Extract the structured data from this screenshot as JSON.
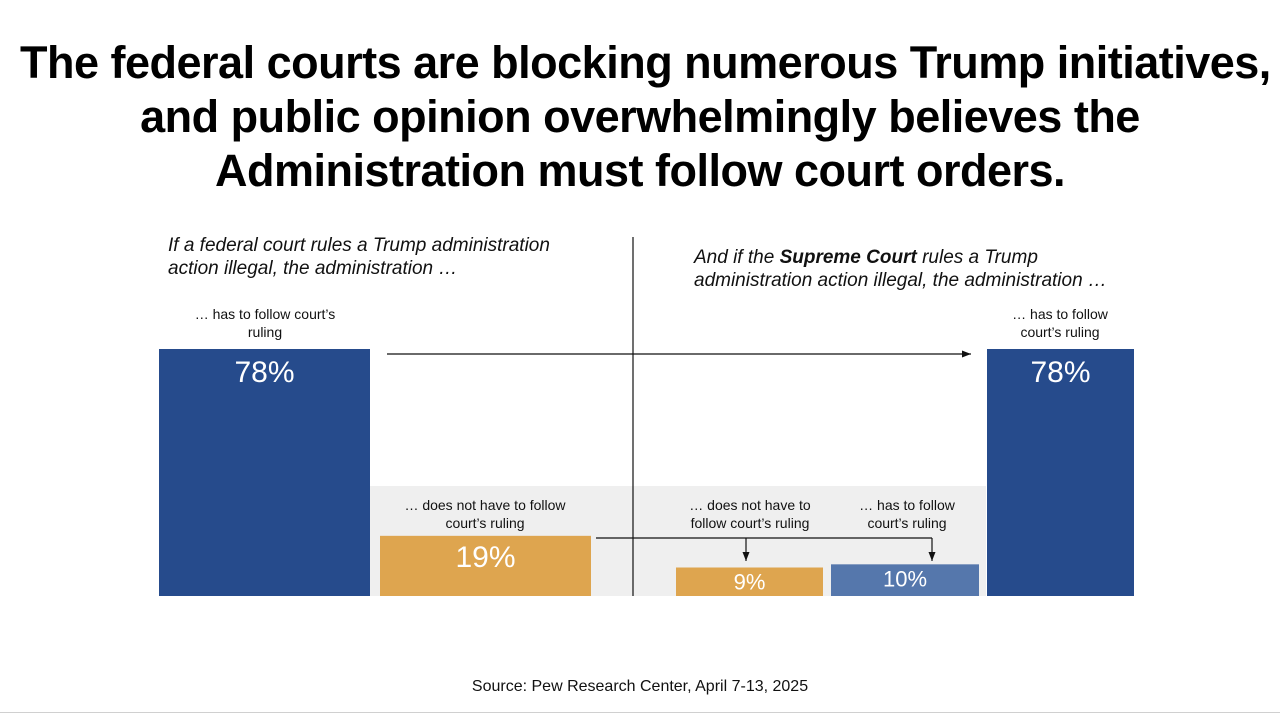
{
  "title_lines": [
    "The federal courts are blocking numerous Trump initiatives,",
    "and public opinion overwhelmingly believes the",
    "Administration must follow court orders."
  ],
  "left_subtitle_lines": [
    "If a federal court rules a Trump administration",
    "action illegal, the administration …"
  ],
  "right_subtitle": {
    "prefix": "And if the ",
    "bold": "Supreme Court",
    "suffix": " rules a Trump",
    "line2": "administration action illegal, the administration …"
  },
  "labels": {
    "left_follow": [
      "… has to follow court’s",
      "ruling"
    ],
    "left_not_follow": [
      "… does not have to follow",
      "court’s ruling"
    ],
    "right_not_follow": [
      "… does not have to",
      "follow court’s ruling"
    ],
    "right_sub_follow": [
      "… has to follow",
      "court’s ruling"
    ],
    "right_follow": [
      "… has to follow",
      "court’s ruling"
    ]
  },
  "source": "Source: Pew Research Center, April 7-13, 2025",
  "colors": {
    "blue": "#264b8c",
    "light_blue": "#5577ac",
    "orange": "#dea54f",
    "shade": "#efefef",
    "line": "#111111"
  },
  "chart_data": {
    "type": "bar",
    "bars": [
      {
        "panel": "federal court",
        "category": "has to follow court's ruling",
        "value": 78,
        "label": "78%"
      },
      {
        "panel": "federal court",
        "category": "does not have to follow court's ruling",
        "value": 19,
        "label": "19%"
      },
      {
        "panel": "Supreme Court",
        "category": "does not have to follow court's ruling",
        "value": 9,
        "label": "9%"
      },
      {
        "panel": "Supreme Court",
        "category": "has to follow court's ruling",
        "value": 10,
        "label": "10%"
      },
      {
        "panel": "Supreme Court",
        "category": "has to follow court's ruling",
        "value": 78,
        "label": "78%"
      }
    ],
    "grid": false
  }
}
